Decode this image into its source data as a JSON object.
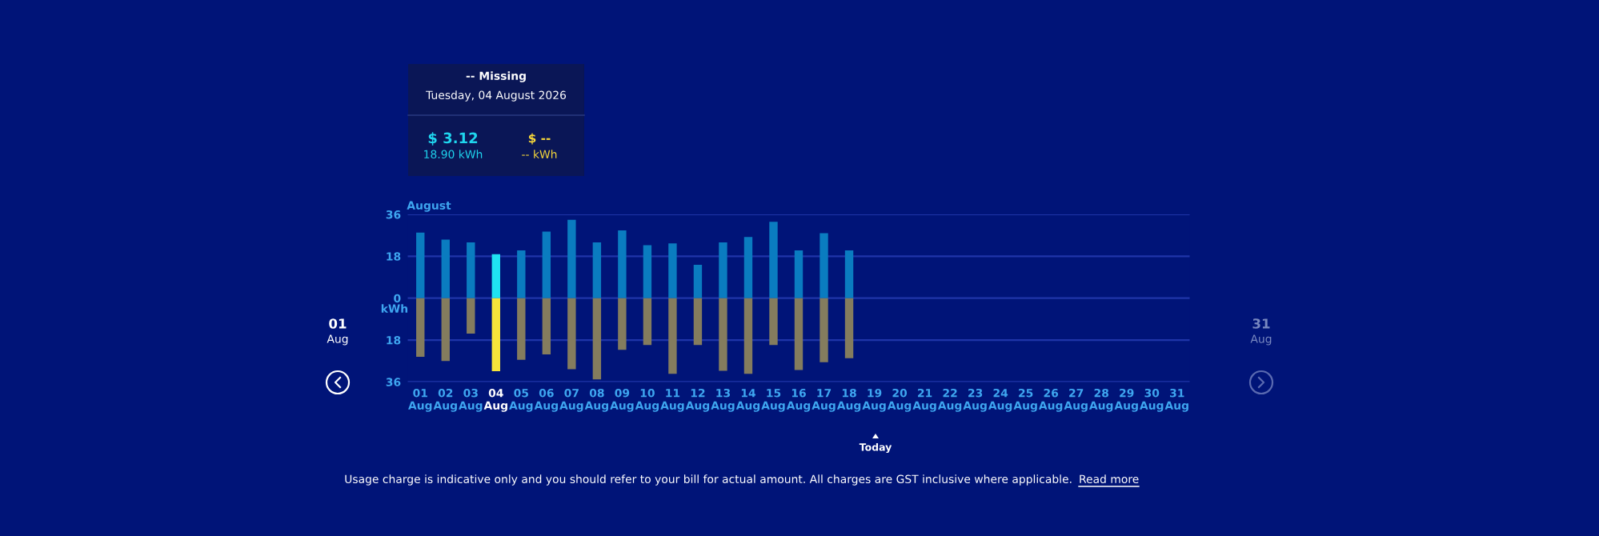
{
  "chart_data": {
    "type": "bar",
    "stacked": true,
    "categories": [
      "01\nAug",
      "02\nAug",
      "03\nAug",
      "04\nAug",
      "05\nAug",
      "06\nAug",
      "07\nAug",
      "08\nAug",
      "09\nAug",
      "10\nAug",
      "11\nAug",
      "12\nAug",
      "13\nAug",
      "14\nAug",
      "15\nAug",
      "16\nAug",
      "17\nAug",
      "18\nAug",
      "19\nAug",
      "20\nAug",
      "21\nAug",
      "22\nAug",
      "23\nAug",
      "24\nAug",
      "25\nAug",
      "26\nAug",
      "27\nAug",
      "28\nAug",
      "29\nAug",
      "30\nAug",
      "31\nAug"
    ],
    "series": [
      {
        "colors": [
          "#0a7cc0",
          "#0a7cc0",
          "#0a7cc0",
          "#1fe3f2",
          "#0a7cc0",
          "#0a7cc0",
          "#0a7cc0",
          "#0a7cc0",
          "#0a7cc0",
          "#0a7cc0",
          "#0a7cc0",
          "#0a7cc0",
          "#0a7cc0",
          "#0a7cc0",
          "#0a7cc0",
          "#0a7cc0",
          "#0a7cc0",
          "#0a7cc0",
          "#0a7cc0",
          "#0a7cc0",
          "#0a7cc0",
          "#0a7cc0",
          "#0a7cc0",
          "#0a7cc0",
          "#0a7cc0",
          "#0a7cc0",
          "#0a7cc0",
          "#0a7cc0",
          "#0a7cc0",
          "#0a7cc0",
          "#0a7cc0"
        ],
        "values": [
          28.2,
          25.2,
          24.0,
          18.9,
          20.5,
          28.6,
          33.7,
          24.0,
          29.1,
          22.8,
          23.5,
          14.3,
          24.0,
          26.3,
          32.8,
          20.5,
          27.9,
          20.5,
          null,
          null,
          null,
          null,
          null,
          null,
          null,
          null,
          null,
          null,
          null,
          null,
          null
        ]
      },
      {
        "colors": [
          "#847c5e",
          "#847c5e",
          "#847c5e",
          "#f7e43a",
          "#847c5e",
          "#847c5e",
          "#847c5e",
          "#847c5e",
          "#847c5e",
          "#847c5e",
          "#847c5e",
          "#847c5e",
          "#847c5e",
          "#847c5e",
          "#847c5e",
          "#847c5e",
          "#847c5e",
          "#847c5e",
          "#847c5e",
          "#847c5e",
          "#847c5e",
          "#847c5e",
          "#847c5e",
          "#847c5e",
          "#847c5e",
          "#847c5e",
          "#847c5e",
          "#847c5e",
          "#847c5e",
          "#847c5e",
          "#847c5e"
        ],
        "values": [
          -25.2,
          -27.0,
          -15.2,
          -31.4,
          -26.5,
          -24.2,
          -30.5,
          -34.9,
          -22.2,
          -20.1,
          -32.5,
          -20.1,
          -31.2,
          -32.5,
          -20.1,
          -30.9,
          -27.5,
          -25.8,
          null,
          null,
          null,
          null,
          null,
          null,
          null,
          null,
          null,
          null,
          null,
          null,
          null
        ]
      }
    ],
    "ylim": [
      -36,
      36
    ],
    "yticks": [
      {
        "value": -36,
        "label": "36"
      },
      {
        "value": -18,
        "label": "18"
      },
      0,
      18,
      36
    ],
    "ylabel": "kWh",
    "grid": "y",
    "legend": false,
    "annotations": [
      "-- Missing",
      "Tuesday, 04 August 2026",
      "$ 3.12",
      "18.90 kWh",
      "$ --",
      "-- kWh",
      "August",
      "01\nAug",
      "31\nAug",
      "Today",
      "Usage charge is indicative only and you should refer to your bill for actual amount. All charges are GST inclusive where applicable.",
      "Read more"
    ]
  }
}
